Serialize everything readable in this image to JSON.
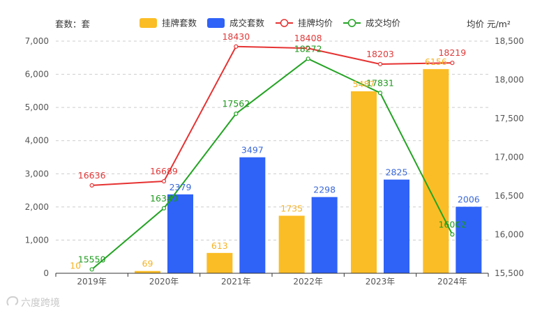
{
  "watermark": "六度跨境",
  "chart_data": {
    "type": "bar",
    "categories": [
      "2019年",
      "2020年",
      "2021年",
      "2022年",
      "2023年",
      "2024年"
    ],
    "left_axis_label": "套数：套",
    "right_axis_label": "均价 元/m²",
    "left_ylim": [
      0,
      7000
    ],
    "left_ticks": [
      0,
      1000,
      2000,
      3000,
      4000,
      5000,
      6000,
      7000
    ],
    "left_tick_labels": [
      "0",
      "1,000",
      "2,000",
      "3,000",
      "4,000",
      "5,000",
      "6,000",
      "7,000"
    ],
    "right_ylim": [
      15500,
      18500
    ],
    "right_ticks": [
      15500,
      16000,
      16500,
      17000,
      17500,
      18000,
      18500
    ],
    "right_tick_labels": [
      "15,500",
      "16,000",
      "16,500",
      "17,000",
      "17,500",
      "18,000",
      "18,500"
    ],
    "grid": true,
    "legend_position": "top",
    "series": [
      {
        "name": "挂牌套数",
        "type": "bar",
        "axis": "left",
        "color": "#FBBD25",
        "label_color": "#F5B324",
        "values": [
          10,
          69,
          613,
          1735,
          5487,
          6156
        ],
        "labels": [
          "10",
          "69",
          "613",
          "1735",
          "5487",
          "6156"
        ]
      },
      {
        "name": "成交套数",
        "type": "bar",
        "axis": "left",
        "color": "#2F62F7",
        "label_color": "#3A68D8",
        "values": [
          0,
          2379,
          3497,
          2298,
          2825,
          2006
        ],
        "labels": [
          "",
          "2379",
          "3497",
          "2298",
          "2825",
          "2006"
        ]
      },
      {
        "name": "挂牌均价",
        "type": "line",
        "axis": "right",
        "color": "#E63232",
        "label_color": "#E03A3A",
        "values": [
          16636,
          16689,
          18430,
          18408,
          18203,
          18219
        ],
        "labels": [
          "16636",
          "16689",
          "18430",
          "18408",
          "18203",
          "18219"
        ]
      },
      {
        "name": "成交均价",
        "type": "line",
        "axis": "right",
        "color": "#23A323",
        "label_color": "#1E9A1E",
        "values": [
          15550,
          16340,
          17562,
          18272,
          17831,
          16002
        ],
        "labels": [
          "15550",
          "16340",
          "17562",
          "18272",
          "17831",
          "16002"
        ]
      }
    ]
  }
}
